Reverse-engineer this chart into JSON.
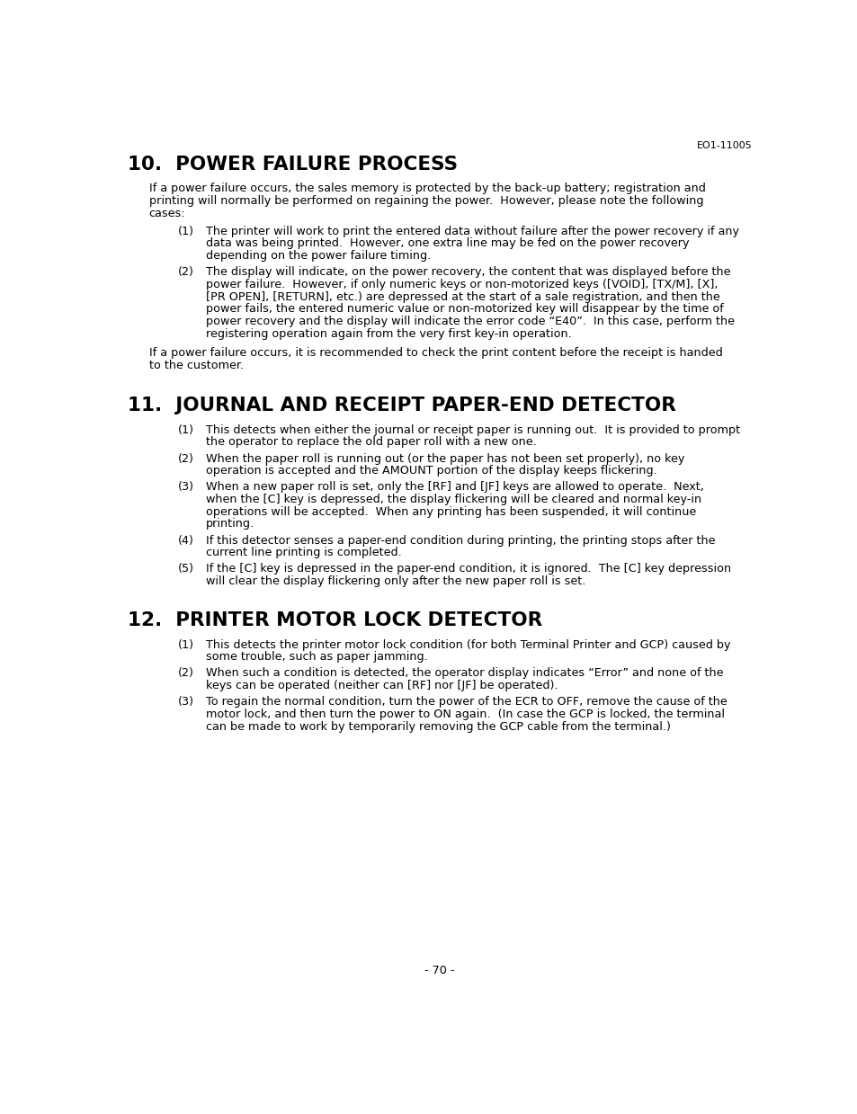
{
  "bg_color": "#ffffff",
  "header_ref": "EO1-11005",
  "footer_text": "- 70 -",
  "sections": [
    {
      "number": "10.",
      "title": "POWER FAILURE PROCESS",
      "intro": "If a power failure occurs, the sales memory is protected by the back-up battery; registration and\nprinting will normally be performed on regaining the power.  However, please note the following\ncases:",
      "items": [
        {
          "num": "(1)",
          "text": "The printer will work to print the entered data without failure after the power recovery if any\ndata was being printed.  However, one extra line may be fed on the power recovery\ndepending on the power failure timing."
        },
        {
          "num": "(2)",
          "text": "The display will indicate, on the power recovery, the content that was displayed before the\npower failure.  However, if only numeric keys or non-motorized keys ([VOID], [TX/M], [X],\n[PR OPEN], [RETURN], etc.) are depressed at the start of a sale registration, and then the\npower fails, the entered numeric value or non-motorized key will disappear by the time of\npower recovery and the display will indicate the error code “E40”.  In this case, perform the\nregistering operation again from the very first key-in operation."
        }
      ],
      "outro": "If a power failure occurs, it is recommended to check the print content before the receipt is handed\nto the customer."
    },
    {
      "number": "11.",
      "title": "JOURNAL AND RECEIPT PAPER-END DETECTOR",
      "intro": "",
      "items": [
        {
          "num": "(1)",
          "text": "This detects when either the journal or receipt paper is running out.  It is provided to prompt\nthe operator to replace the old paper roll with a new one."
        },
        {
          "num": "(2)",
          "text": "When the paper roll is running out (or the paper has not been set properly), no key\noperation is accepted and the AMOUNT portion of the display keeps flickering."
        },
        {
          "num": "(3)",
          "text": "When a new paper roll is set, only the [RF] and [JF] keys are allowed to operate.  Next,\nwhen the [C] key is depressed, the display flickering will be cleared and normal key-in\noperations will be accepted.  When any printing has been suspended, it will continue\nprinting."
        },
        {
          "num": "(4)",
          "text": "If this detector senses a paper-end condition during printing, the printing stops after the\ncurrent line printing is completed."
        },
        {
          "num": "(5)",
          "text": "If the [C] key is depressed in the paper-end condition, it is ignored.  The [C] key depression\nwill clear the display flickering only after the new paper roll is set."
        }
      ],
      "outro": ""
    },
    {
      "number": "12.",
      "title": "PRINTER MOTOR LOCK DETECTOR",
      "intro": "",
      "items": [
        {
          "num": "(1)",
          "text": "This detects the printer motor lock condition (for both Terminal Printer and GCP) caused by\nsome trouble, such as paper jamming."
        },
        {
          "num": "(2)",
          "text": "When such a condition is detected, the operator display indicates “Error” and none of the\nkeys can be operated (neither can [RF] nor [JF] be operated)."
        },
        {
          "num": "(3)",
          "text": "To regain the normal condition, turn the power of the ECR to OFF, remove the cause of the\nmotor lock, and then turn the power to ON again.  (In case the GCP is locked, the terminal\ncan be made to work by temporarily removing the GCP cable from the terminal.)"
        }
      ],
      "outro": ""
    }
  ]
}
